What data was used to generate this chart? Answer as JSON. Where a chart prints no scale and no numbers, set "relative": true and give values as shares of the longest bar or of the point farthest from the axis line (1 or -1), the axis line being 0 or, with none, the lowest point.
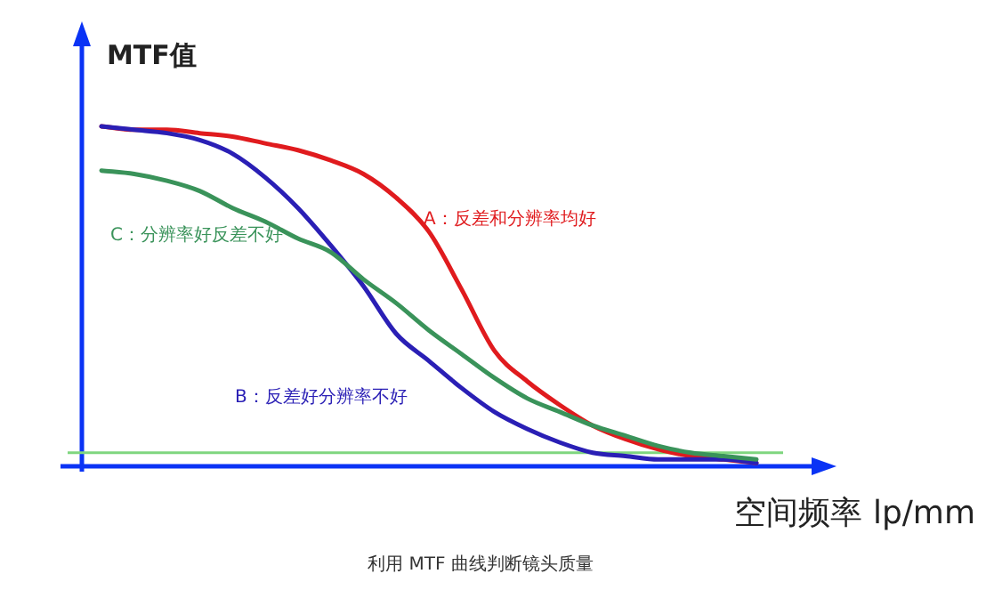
{
  "chart_data": {
    "type": "line",
    "relative": true,
    "ylabel": "MTF值",
    "xlabel": "空间频率 lp/mm",
    "categories": [
      null,
      null,
      null,
      null,
      null,
      null,
      null,
      null,
      null,
      null,
      null,
      null,
      null,
      null,
      null,
      null,
      null,
      null,
      null,
      null,
      null
    ],
    "series": [
      {
        "name": "A：反差和分辨率均好",
        "color": "#e01b1e",
        "values": [
          1.0,
          0.99,
          0.99,
          0.98,
          0.97,
          0.95,
          0.93,
          0.9,
          0.86,
          0.79,
          0.69,
          0.52,
          0.34,
          0.25,
          0.18,
          0.12,
          0.08,
          0.05,
          0.03,
          0.02,
          0.01
        ]
      },
      {
        "name": "B：反差好分辨率不好",
        "color": "#2a1fb5",
        "values": [
          1.0,
          0.99,
          0.98,
          0.96,
          0.92,
          0.85,
          0.76,
          0.65,
          0.53,
          0.39,
          0.31,
          0.23,
          0.16,
          0.11,
          0.07,
          0.04,
          0.03,
          0.02,
          0.02,
          0.02,
          0.01
        ]
      },
      {
        "name": "C：分辨率好反差不好",
        "color": "#3a935a",
        "values": [
          0.87,
          0.86,
          0.84,
          0.81,
          0.76,
          0.72,
          0.67,
          0.63,
          0.55,
          0.48,
          0.4,
          0.33,
          0.26,
          0.2,
          0.16,
          0.12,
          0.09,
          0.06,
          0.04,
          0.03,
          0.02
        ]
      }
    ],
    "ref_lines": [
      {
        "axis": "y",
        "value": 0.04,
        "label": null,
        "color": "#7fd67f"
      }
    ],
    "annotations": [
      "利用 MTF 曲线判断镜头质量"
    ]
  }
}
